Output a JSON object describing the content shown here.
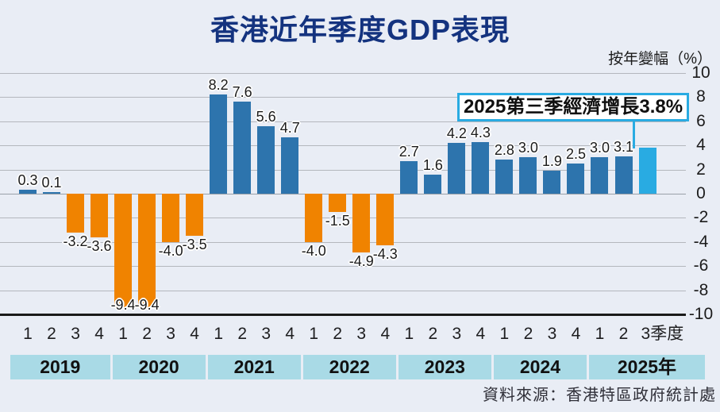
{
  "title": "香港近年季度GDP表現",
  "axis_unit_label": "按年變幅（%）",
  "annotation": {
    "text": "2025第三季經濟增長3.8%"
  },
  "source": "資料來源：香港特區政府統計處",
  "chart_data": {
    "type": "bar",
    "title": "香港近年季度GDP表現",
    "ylabel": "按年變幅（%）",
    "ylim": [
      -10,
      10
    ],
    "yticks": [
      10,
      8,
      6,
      4,
      2,
      0,
      -2,
      -4,
      -6,
      -8,
      -10
    ],
    "grid": true,
    "legend": "none",
    "quarter_labels": [
      "1",
      "2",
      "3",
      "4",
      "1",
      "2",
      "3",
      "4",
      "1",
      "2",
      "3",
      "4",
      "1",
      "2",
      "3",
      "4",
      "1",
      "2",
      "3",
      "4",
      "1",
      "2",
      "3",
      "4",
      "1",
      "2",
      "3季度"
    ],
    "year_groups": [
      {
        "label": "2019",
        "quarters": 4
      },
      {
        "label": "2020",
        "quarters": 4
      },
      {
        "label": "2021",
        "quarters": 4
      },
      {
        "label": "2022",
        "quarters": 4
      },
      {
        "label": "2023",
        "quarters": 4
      },
      {
        "label": "2024",
        "quarters": 4
      },
      {
        "label": "2025年",
        "quarters": 3
      }
    ],
    "values": [
      0.3,
      0.1,
      -3.2,
      -3.6,
      -9.4,
      -9.4,
      -4.0,
      -3.5,
      8.2,
      7.6,
      5.6,
      4.7,
      -4.0,
      -1.5,
      -4.9,
      -4.3,
      2.7,
      1.6,
      4.2,
      4.3,
      2.8,
      3.0,
      1.9,
      2.5,
      3.0,
      3.1,
      3.8
    ],
    "bar_labels": [
      "0.3",
      "0.1",
      "-3.2",
      "-3.6",
      "-9.4",
      "-9.4",
      "-4.0",
      "-3.5",
      "8.2",
      "7.6",
      "5.6",
      "4.7",
      "-4.0",
      "-1.5",
      "-4.9",
      "-4.3",
      "2.7",
      "1.6",
      "4.2",
      "4.3",
      "2.8",
      "3.0",
      "1.9",
      "2.5",
      "3.0",
      "3.1",
      null
    ],
    "highlight_index": 26,
    "colors": {
      "positive_bar": "#2d74ad",
      "negative_bar": "#f08300",
      "highlight_bar": "#29abe2",
      "title": "#14337f",
      "background": "#e9edf5",
      "year_band": "#a9dae6",
      "gridline": "#b4b7bd",
      "baseline": "#1a1a1a",
      "annotation_border": "#29abe2"
    }
  }
}
